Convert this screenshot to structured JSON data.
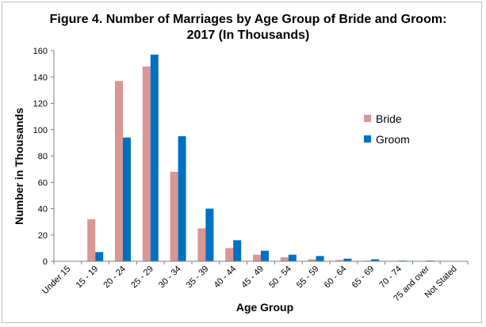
{
  "chart_data": {
    "type": "bar",
    "title_line1": "Figure 4. Number of Marriages by Age Group of Bride and Groom:",
    "title_line2": "2017 (In Thousands)",
    "xlabel": "Age Group",
    "ylabel": "Number in  Thousands",
    "ylim": [
      0,
      160
    ],
    "yticks": [
      "0",
      "20",
      "40",
      "60",
      "80",
      "100",
      "120",
      "140",
      "160"
    ],
    "categories": [
      "Under 15",
      "15 - 19",
      "20 - 24",
      "25 - 29",
      "30 - 34",
      "35 - 39",
      "40 - 44",
      "45 - 49",
      "50 - 54",
      "55 - 59",
      "60 - 64",
      "65 - 69",
      "70 - 74",
      "75 and over",
      "Not Stated"
    ],
    "series": [
      {
        "name": "Bride",
        "color": "#d99694",
        "values": [
          0.3,
          32,
          137,
          148,
          68,
          25,
          10,
          5,
          3,
          1.5,
          1,
          0.5,
          0.3,
          0.3,
          0
        ]
      },
      {
        "name": "Groom",
        "color": "#0070c0",
        "values": [
          0.1,
          7,
          94,
          157,
          95,
          40,
          16,
          8,
          5,
          4,
          2,
          1.5,
          0.5,
          0.5,
          0
        ]
      }
    ],
    "legend_position": "right",
    "grid": false
  }
}
